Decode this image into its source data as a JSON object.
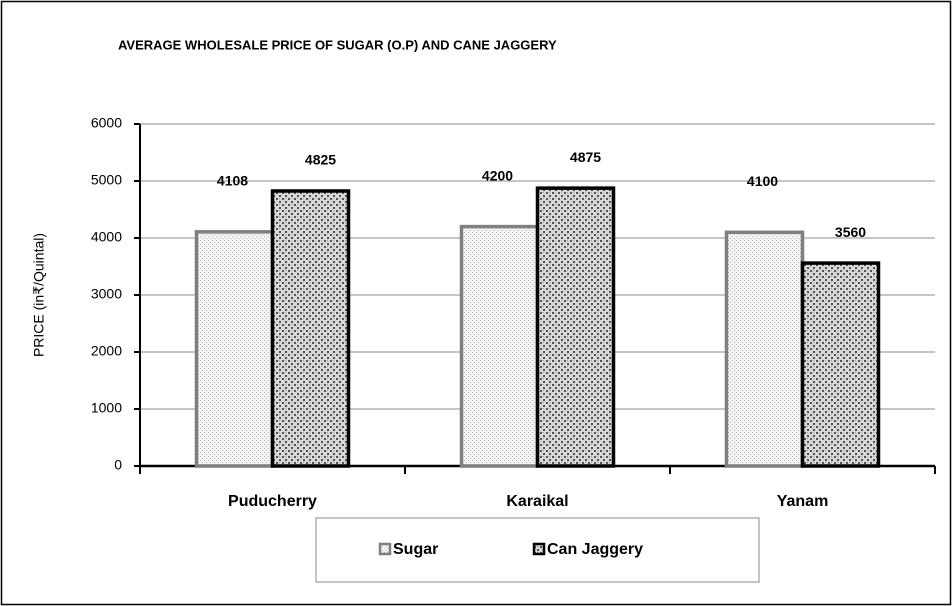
{
  "chart_data": {
    "type": "bar",
    "title": "AVERAGE WHOLESALE PRICE OF SUGAR (O.P) AND CANE JAGGERY",
    "y_label": "PRICE (in₹/Quintal)",
    "categories": [
      "Puducherry",
      "Karaikal",
      "Yanam"
    ],
    "series": [
      {
        "name": "Sugar",
        "color": "#7f7f7f",
        "values": [
          4108,
          4200,
          4100
        ]
      },
      {
        "name": "Can Jaggery",
        "color": "#000000",
        "values": [
          4825,
          4875,
          3560
        ]
      }
    ],
    "ylim": [
      0,
      6000
    ],
    "yticks": [
      0,
      1000,
      2000,
      3000,
      4000,
      5000,
      6000
    ],
    "grid": true,
    "legend": "bottom"
  }
}
